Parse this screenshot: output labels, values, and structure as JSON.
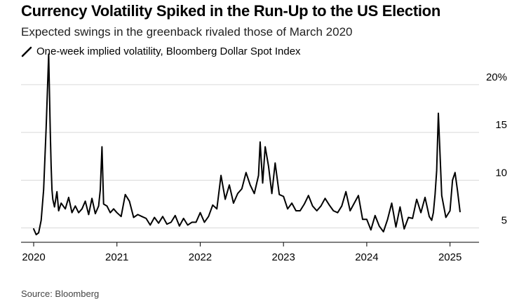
{
  "title": "Currency Volatility Spiked in the Run-Up to the US Election",
  "subtitle": "Expected swings in the greenback rivaled those of March 2020",
  "legend": {
    "label": "One-week implied volatility, Bloomberg Dollar Spot Index"
  },
  "source": "Source: Bloomberg",
  "colors": {
    "line": "#000000",
    "grid": "#d9d9d9",
    "background": "#ffffff"
  },
  "chart_data": {
    "type": "line",
    "title": "Currency Volatility Spiked in the Run-Up to the US Election",
    "subtitle": "Expected swings in the greenback rivaled those of March 2020",
    "xlabel": "",
    "ylabel": "",
    "xlim": [
      2020.0,
      2025.5
    ],
    "ylim": [
      3.5,
      23
    ],
    "x_ticks": [
      2020,
      2021,
      2022,
      2023,
      2024,
      2025
    ],
    "x_tick_labels": [
      "2020",
      "2021",
      "2022",
      "2023",
      "2024",
      "2025"
    ],
    "y_ticks": [
      5,
      10,
      15,
      20
    ],
    "y_tick_labels": [
      "5",
      "10",
      "15",
      "20%"
    ],
    "grid": true,
    "series": [
      {
        "name": "One-week implied volatility, Bloomberg Dollar Spot Index",
        "x": [
          2020.0,
          2020.03,
          2020.06,
          2020.09,
          2020.12,
          2020.15,
          2020.18,
          2020.2,
          2020.21,
          2020.22,
          2020.23,
          2020.25,
          2020.28,
          2020.3,
          2020.33,
          2020.38,
          2020.42,
          2020.46,
          2020.5,
          2020.54,
          2020.58,
          2020.62,
          2020.66,
          2020.7,
          2020.74,
          2020.78,
          2020.8,
          2020.82,
          2020.84,
          2020.88,
          2020.92,
          2020.96,
          2021.0,
          2021.05,
          2021.1,
          2021.15,
          2021.2,
          2021.25,
          2021.3,
          2021.35,
          2021.4,
          2021.45,
          2021.5,
          2021.55,
          2021.6,
          2021.65,
          2021.7,
          2021.75,
          2021.8,
          2021.85,
          2021.9,
          2021.95,
          2022.0,
          2022.05,
          2022.1,
          2022.15,
          2022.2,
          2022.25,
          2022.3,
          2022.35,
          2022.4,
          2022.45,
          2022.5,
          2022.55,
          2022.6,
          2022.65,
          2022.7,
          2022.72,
          2022.75,
          2022.78,
          2022.82,
          2022.86,
          2022.9,
          2022.95,
          2023.0,
          2023.05,
          2023.1,
          2023.15,
          2023.2,
          2023.25,
          2023.3,
          2023.35,
          2023.4,
          2023.45,
          2023.5,
          2023.55,
          2023.6,
          2023.65,
          2023.7,
          2023.75,
          2023.8,
          2023.85,
          2023.9,
          2023.95,
          2024.0,
          2024.05,
          2024.1,
          2024.15,
          2024.2,
          2024.25,
          2024.3,
          2024.35,
          2024.4,
          2024.45,
          2024.5,
          2024.55,
          2024.6,
          2024.65,
          2024.7,
          2024.75,
          2024.78,
          2024.8,
          2024.82,
          2024.84,
          2024.86,
          2024.9,
          2024.95,
          2025.0,
          2025.03,
          2025.06,
          2025.09,
          2025.12
        ],
        "values": [
          4.9,
          4.3,
          4.5,
          5.8,
          9.0,
          15.5,
          23.2,
          15.0,
          11.5,
          9.0,
          8.0,
          7.2,
          8.8,
          6.8,
          7.6,
          7.0,
          8.2,
          6.6,
          7.3,
          6.6,
          7.0,
          7.8,
          6.4,
          8.1,
          6.5,
          7.3,
          9.0,
          13.5,
          7.5,
          7.3,
          6.6,
          7.0,
          6.6,
          6.2,
          8.5,
          7.8,
          6.1,
          6.4,
          6.2,
          6.0,
          5.3,
          6.1,
          5.5,
          6.2,
          5.4,
          5.6,
          6.3,
          5.2,
          6.0,
          5.3,
          5.6,
          5.6,
          6.6,
          5.6,
          6.2,
          7.4,
          7.0,
          10.5,
          8.0,
          9.5,
          7.6,
          8.6,
          9.1,
          10.8,
          9.5,
          8.6,
          10.5,
          14.0,
          9.7,
          13.5,
          11.5,
          8.6,
          11.8,
          8.5,
          8.3,
          7.0,
          7.6,
          6.8,
          6.8,
          7.5,
          8.4,
          7.3,
          6.8,
          7.3,
          8.1,
          7.4,
          6.8,
          6.6,
          7.3,
          8.8,
          6.8,
          7.6,
          8.4,
          5.9,
          5.9,
          4.8,
          6.3,
          5.2,
          4.6,
          5.9,
          7.6,
          5.1,
          7.2,
          4.9,
          6.1,
          6.0,
          8.0,
          6.6,
          8.2,
          6.2,
          5.8,
          6.6,
          8.5,
          11.0,
          17.0,
          8.4,
          6.1,
          6.8,
          10.0,
          10.8,
          8.9,
          6.7
        ]
      }
    ]
  }
}
